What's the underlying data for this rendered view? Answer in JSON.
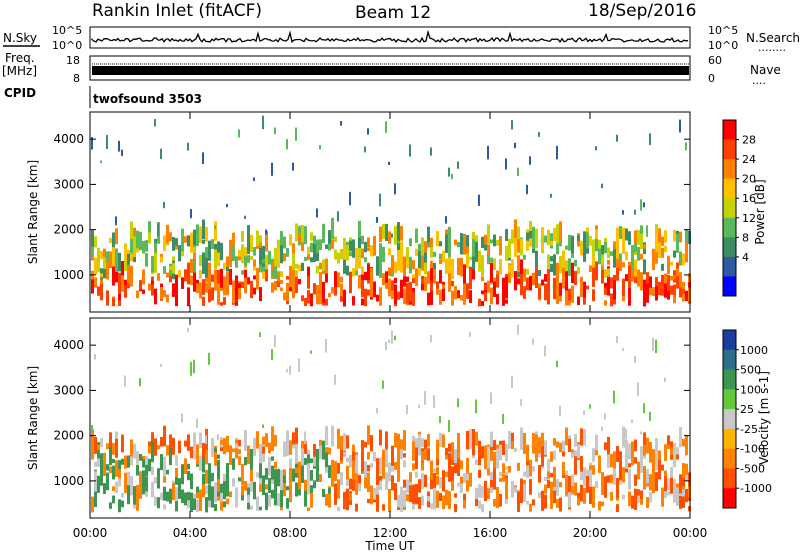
{
  "header": {
    "station": "Rankin Inlet (fitACF)",
    "beam": "Beam 12",
    "date": "18/Sep/2016"
  },
  "nsky_panel": {
    "left_label": "N.Sky",
    "right_label": "N.Search",
    "left_ticks": [
      "10^5",
      "10^0"
    ],
    "right_ticks": [
      "10^5",
      "10^0"
    ],
    "right_marker": "........"
  },
  "freq_panel": {
    "left_label_1": "Freq.",
    "left_label_2": "[MHz]",
    "left_ticks": [
      "18",
      "8"
    ],
    "right_label": "Nave",
    "right_ticks": [
      "60",
      "0"
    ],
    "right_marker": "...."
  },
  "cpid_panel": {
    "label": "CPID",
    "program": "twofsound 3503"
  },
  "chart_data": [
    {
      "type": "heatmap",
      "name": "power",
      "ylabel": "Slant Range [km]",
      "ytick_values": [
        1000,
        2000,
        3000,
        4000
      ],
      "ylim": [
        180,
        4600
      ],
      "xlim": [
        0,
        24
      ],
      "xticks": [
        "00:00",
        "04:00",
        "08:00",
        "12:00",
        "16:00",
        "20:00",
        "00:00"
      ],
      "colorbar": {
        "label": "Power [dB]",
        "ticks": [
          "28",
          "24",
          "20",
          "16",
          "12",
          "8",
          "4"
        ],
        "colors": [
          "#ff0000",
          "#ff4000",
          "#ff8000",
          "#ffc000",
          "#c8d200",
          "#5cb85c",
          "#3c8c64",
          "#2d5aa0",
          "#0000ff"
        ]
      }
    },
    {
      "type": "heatmap",
      "name": "velocity",
      "ylabel": "Slant Range [km]",
      "ytick_values": [
        1000,
        2000,
        3000,
        4000
      ],
      "ylim": [
        180,
        4600
      ],
      "xlim": [
        0,
        24
      ],
      "xticks": [
        "00:00",
        "04:00",
        "08:00",
        "12:00",
        "16:00",
        "20:00",
        "00:00"
      ],
      "xlabel": "Time UT",
      "colorbar": {
        "label": "Velocity [m s-1]",
        "ticks": [
          "1000",
          "500",
          "100",
          "25",
          "-25",
          "-100",
          "-500",
          "-1000"
        ],
        "colors": [
          "#1e3ca0",
          "#2d6e8c",
          "#3c9650",
          "#64c83c",
          "#c8c8c8",
          "#ffb400",
          "#ff8200",
          "#ff5000",
          "#ff0000"
        ]
      }
    }
  ]
}
